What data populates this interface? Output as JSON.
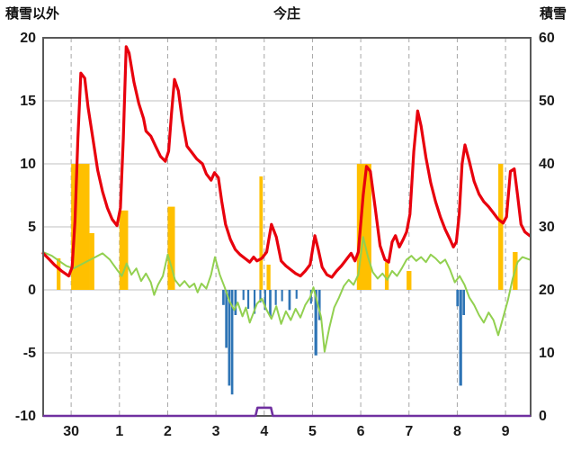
{
  "header": {
    "left_axis_title": "積雪以外",
    "title": "今庄",
    "right_axis_title": "積雪"
  },
  "chart_data": {
    "type": "line",
    "title": "今庄",
    "left_axis": {
      "label": "積雪以外",
      "min": -10,
      "max": 20,
      "ticks": [
        20,
        15,
        10,
        5,
        0,
        -5,
        -10
      ]
    },
    "right_axis": {
      "label": "積雪",
      "min": 0,
      "max": 60,
      "ticks": [
        60,
        50,
        40,
        30,
        20,
        10,
        0
      ]
    },
    "x_axis": {
      "min": 29.42,
      "max": 39.52,
      "tick_positions": [
        30,
        31,
        32,
        33,
        34,
        35,
        36,
        37,
        38,
        39
      ],
      "tick_labels": [
        "30",
        "1",
        "2",
        "3",
        "4",
        "5",
        "6",
        "7",
        "8",
        "9"
      ]
    },
    "grid": {
      "h_color": "#c0c0c0",
      "v_color": "#a6a6a6",
      "v_dash": "5 4"
    },
    "border_color": "#595959",
    "label_color": "#1a1a1a",
    "series": [
      {
        "name": "yellow-bars",
        "type": "bar",
        "color": "#ffc000",
        "bars": [
          [
            29.7,
            0.08,
            2.5
          ],
          [
            30.0,
            0.38,
            10
          ],
          [
            30.38,
            0.1,
            4.5
          ],
          [
            31.0,
            0.18,
            6.3
          ],
          [
            32.0,
            0.15,
            6.6
          ],
          [
            33.9,
            0.07,
            9.0
          ],
          [
            34.05,
            0.08,
            2.0
          ],
          [
            35.92,
            0.3,
            10
          ],
          [
            36.5,
            0.08,
            2.2
          ],
          [
            36.95,
            0.1,
            1.5
          ],
          [
            38.85,
            0.1,
            10
          ],
          [
            39.15,
            0.1,
            3.0
          ]
        ]
      },
      {
        "name": "blue-bars",
        "type": "bar",
        "color": "#2e74b5",
        "bars": [
          [
            33.13,
            0.05,
            -1.2
          ],
          [
            33.19,
            0.05,
            -4.6
          ],
          [
            33.25,
            0.05,
            -7.6
          ],
          [
            33.31,
            0.05,
            -8.3
          ],
          [
            33.38,
            0.05,
            -2.0
          ],
          [
            33.55,
            0.04,
            -0.8
          ],
          [
            33.65,
            0.04,
            -1.5
          ],
          [
            33.78,
            0.04,
            -1.9
          ],
          [
            33.9,
            0.04,
            -1.0
          ],
          [
            34.0,
            0.04,
            -1.6
          ],
          [
            34.1,
            0.05,
            -2.1
          ],
          [
            34.22,
            0.04,
            -1.2
          ],
          [
            34.35,
            0.04,
            -0.9
          ],
          [
            34.5,
            0.05,
            -1.6
          ],
          [
            34.65,
            0.04,
            -0.7
          ],
          [
            34.95,
            0.04,
            -1.1
          ],
          [
            35.04,
            0.06,
            -5.2
          ],
          [
            35.12,
            0.05,
            -2.4
          ],
          [
            37.98,
            0.05,
            -1.3
          ],
          [
            38.04,
            0.06,
            -7.6
          ],
          [
            38.11,
            0.05,
            -2.0
          ]
        ]
      },
      {
        "name": "green-line",
        "type": "line",
        "color": "#92d050",
        "width": 2,
        "points": [
          [
            29.42,
            3.0
          ],
          [
            29.6,
            2.7
          ],
          [
            29.75,
            2.3
          ],
          [
            29.9,
            1.9
          ],
          [
            30.05,
            1.7
          ],
          [
            30.2,
            2.0
          ],
          [
            30.35,
            2.3
          ],
          [
            30.5,
            2.6
          ],
          [
            30.65,
            2.9
          ],
          [
            30.8,
            2.4
          ],
          [
            30.95,
            1.6
          ],
          [
            31.05,
            1.1
          ],
          [
            31.15,
            2.1
          ],
          [
            31.25,
            1.2
          ],
          [
            31.35,
            1.7
          ],
          [
            31.45,
            0.7
          ],
          [
            31.55,
            1.3
          ],
          [
            31.65,
            0.6
          ],
          [
            31.72,
            -0.4
          ],
          [
            31.8,
            0.4
          ],
          [
            31.9,
            1.1
          ],
          [
            32.0,
            2.8
          ],
          [
            32.08,
            1.8
          ],
          [
            32.15,
            0.8
          ],
          [
            32.25,
            0.3
          ],
          [
            32.35,
            0.7
          ],
          [
            32.45,
            0.2
          ],
          [
            32.55,
            0.5
          ],
          [
            32.62,
            -0.2
          ],
          [
            32.7,
            0.5
          ],
          [
            32.8,
            0.1
          ],
          [
            32.9,
            1.2
          ],
          [
            32.98,
            2.6
          ],
          [
            33.08,
            1.2
          ],
          [
            33.18,
            0.2
          ],
          [
            33.28,
            -0.9
          ],
          [
            33.38,
            -1.6
          ],
          [
            33.45,
            -1.0
          ],
          [
            33.55,
            -2.1
          ],
          [
            33.62,
            -1.4
          ],
          [
            33.7,
            -2.6
          ],
          [
            33.78,
            -1.8
          ],
          [
            33.85,
            -1.1
          ],
          [
            33.95,
            -0.7
          ],
          [
            34.05,
            -1.6
          ],
          [
            34.15,
            -2.3
          ],
          [
            34.25,
            -1.3
          ],
          [
            34.35,
            -2.7
          ],
          [
            34.45,
            -1.7
          ],
          [
            34.55,
            -2.4
          ],
          [
            34.65,
            -1.5
          ],
          [
            34.75,
            -2.2
          ],
          [
            34.85,
            -1.2
          ],
          [
            34.95,
            -0.6
          ],
          [
            35.02,
            0.2
          ],
          [
            35.1,
            -1.0
          ],
          [
            35.18,
            -2.2
          ],
          [
            35.25,
            -4.9
          ],
          [
            35.35,
            -3.0
          ],
          [
            35.45,
            -1.4
          ],
          [
            35.55,
            -0.6
          ],
          [
            35.65,
            0.3
          ],
          [
            35.75,
            0.8
          ],
          [
            35.85,
            0.4
          ],
          [
            35.95,
            1.2
          ],
          [
            36.05,
            4.2
          ],
          [
            36.15,
            2.6
          ],
          [
            36.25,
            1.4
          ],
          [
            36.35,
            0.9
          ],
          [
            36.45,
            1.3
          ],
          [
            36.55,
            0.8
          ],
          [
            36.65,
            1.5
          ],
          [
            36.75,
            1.1
          ],
          [
            36.85,
            1.7
          ],
          [
            36.95,
            2.4
          ],
          [
            37.05,
            2.7
          ],
          [
            37.15,
            2.3
          ],
          [
            37.25,
            2.6
          ],
          [
            37.35,
            2.2
          ],
          [
            37.45,
            2.8
          ],
          [
            37.55,
            2.5
          ],
          [
            37.65,
            2.1
          ],
          [
            37.75,
            2.4
          ],
          [
            37.85,
            1.6
          ],
          [
            37.95,
            0.6
          ],
          [
            38.05,
            1.1
          ],
          [
            38.15,
            0.4
          ],
          [
            38.25,
            -0.6
          ],
          [
            38.35,
            -1.2
          ],
          [
            38.45,
            -2.0
          ],
          [
            38.55,
            -2.6
          ],
          [
            38.65,
            -1.8
          ],
          [
            38.75,
            -2.4
          ],
          [
            38.85,
            -3.6
          ],
          [
            38.95,
            -2.2
          ],
          [
            39.05,
            -0.8
          ],
          [
            39.15,
            0.9
          ],
          [
            39.25,
            2.2
          ],
          [
            39.35,
            2.6
          ],
          [
            39.5,
            2.4
          ]
        ]
      },
      {
        "name": "red-line",
        "type": "line",
        "color": "#e8000d",
        "width": 3.2,
        "points": [
          [
            29.42,
            2.9
          ],
          [
            29.55,
            2.4
          ],
          [
            29.65,
            2.0
          ],
          [
            29.8,
            1.5
          ],
          [
            29.95,
            1.1
          ],
          [
            30.02,
            1.8
          ],
          [
            30.08,
            5.5
          ],
          [
            30.14,
            12.0
          ],
          [
            30.2,
            17.2
          ],
          [
            30.28,
            16.8
          ],
          [
            30.35,
            14.5
          ],
          [
            30.45,
            12.0
          ],
          [
            30.55,
            9.5
          ],
          [
            30.65,
            7.8
          ],
          [
            30.75,
            6.5
          ],
          [
            30.85,
            5.6
          ],
          [
            30.95,
            5.1
          ],
          [
            31.02,
            6.5
          ],
          [
            31.08,
            12.0
          ],
          [
            31.14,
            19.3
          ],
          [
            31.2,
            18.8
          ],
          [
            31.3,
            16.5
          ],
          [
            31.4,
            14.8
          ],
          [
            31.5,
            13.6
          ],
          [
            31.55,
            12.6
          ],
          [
            31.65,
            12.2
          ],
          [
            31.75,
            11.4
          ],
          [
            31.85,
            10.6
          ],
          [
            31.95,
            10.2
          ],
          [
            32.02,
            11.0
          ],
          [
            32.08,
            14.0
          ],
          [
            32.14,
            16.7
          ],
          [
            32.22,
            15.8
          ],
          [
            32.3,
            13.5
          ],
          [
            32.4,
            11.4
          ],
          [
            32.5,
            10.9
          ],
          [
            32.6,
            10.4
          ],
          [
            32.72,
            10.0
          ],
          [
            32.8,
            9.2
          ],
          [
            32.9,
            8.7
          ],
          [
            32.97,
            9.3
          ],
          [
            33.05,
            8.9
          ],
          [
            33.12,
            7.0
          ],
          [
            33.2,
            5.2
          ],
          [
            33.3,
            4.0
          ],
          [
            33.4,
            3.2
          ],
          [
            33.5,
            2.8
          ],
          [
            33.6,
            2.5
          ],
          [
            33.7,
            2.2
          ],
          [
            33.78,
            2.6
          ],
          [
            33.85,
            2.3
          ],
          [
            33.95,
            2.5
          ],
          [
            34.05,
            3.0
          ],
          [
            34.15,
            5.2
          ],
          [
            34.25,
            4.2
          ],
          [
            34.35,
            2.3
          ],
          [
            34.45,
            1.9
          ],
          [
            34.55,
            1.6
          ],
          [
            34.65,
            1.3
          ],
          [
            34.75,
            1.1
          ],
          [
            34.85,
            1.5
          ],
          [
            34.95,
            2.0
          ],
          [
            35.05,
            4.3
          ],
          [
            35.12,
            3.2
          ],
          [
            35.2,
            1.8
          ],
          [
            35.3,
            1.2
          ],
          [
            35.4,
            1.0
          ],
          [
            35.5,
            1.5
          ],
          [
            35.6,
            1.9
          ],
          [
            35.7,
            2.4
          ],
          [
            35.8,
            2.9
          ],
          [
            35.88,
            2.3
          ],
          [
            35.95,
            3.0
          ],
          [
            36.05,
            7.5
          ],
          [
            36.12,
            9.8
          ],
          [
            36.2,
            9.4
          ],
          [
            36.3,
            6.5
          ],
          [
            36.4,
            3.5
          ],
          [
            36.5,
            2.4
          ],
          [
            36.58,
            2.2
          ],
          [
            36.65,
            3.8
          ],
          [
            36.72,
            4.3
          ],
          [
            36.8,
            3.4
          ],
          [
            36.88,
            4.0
          ],
          [
            36.95,
            4.6
          ],
          [
            37.02,
            6.0
          ],
          [
            37.1,
            11.0
          ],
          [
            37.18,
            14.2
          ],
          [
            37.25,
            13.0
          ],
          [
            37.35,
            10.5
          ],
          [
            37.45,
            8.5
          ],
          [
            37.55,
            7.0
          ],
          [
            37.65,
            5.8
          ],
          [
            37.75,
            4.8
          ],
          [
            37.85,
            4.0
          ],
          [
            37.92,
            3.4
          ],
          [
            37.98,
            3.8
          ],
          [
            38.04,
            6.0
          ],
          [
            38.1,
            10.0
          ],
          [
            38.16,
            11.5
          ],
          [
            38.25,
            10.2
          ],
          [
            38.35,
            8.6
          ],
          [
            38.45,
            7.6
          ],
          [
            38.55,
            7.0
          ],
          [
            38.65,
            6.6
          ],
          [
            38.75,
            6.1
          ],
          [
            38.85,
            5.6
          ],
          [
            38.95,
            5.3
          ],
          [
            39.02,
            5.8
          ],
          [
            39.1,
            9.4
          ],
          [
            39.18,
            9.6
          ],
          [
            39.25,
            7.5
          ],
          [
            39.32,
            5.2
          ],
          [
            39.4,
            4.6
          ],
          [
            39.5,
            4.3
          ]
        ]
      },
      {
        "name": "purple-line",
        "type": "line",
        "color": "#7030a0",
        "width": 2.6,
        "points": [
          [
            29.42,
            -10
          ],
          [
            33.82,
            -10
          ],
          [
            33.86,
            -9.35
          ],
          [
            34.14,
            -9.35
          ],
          [
            34.18,
            -10
          ],
          [
            39.52,
            -10
          ]
        ]
      }
    ]
  }
}
